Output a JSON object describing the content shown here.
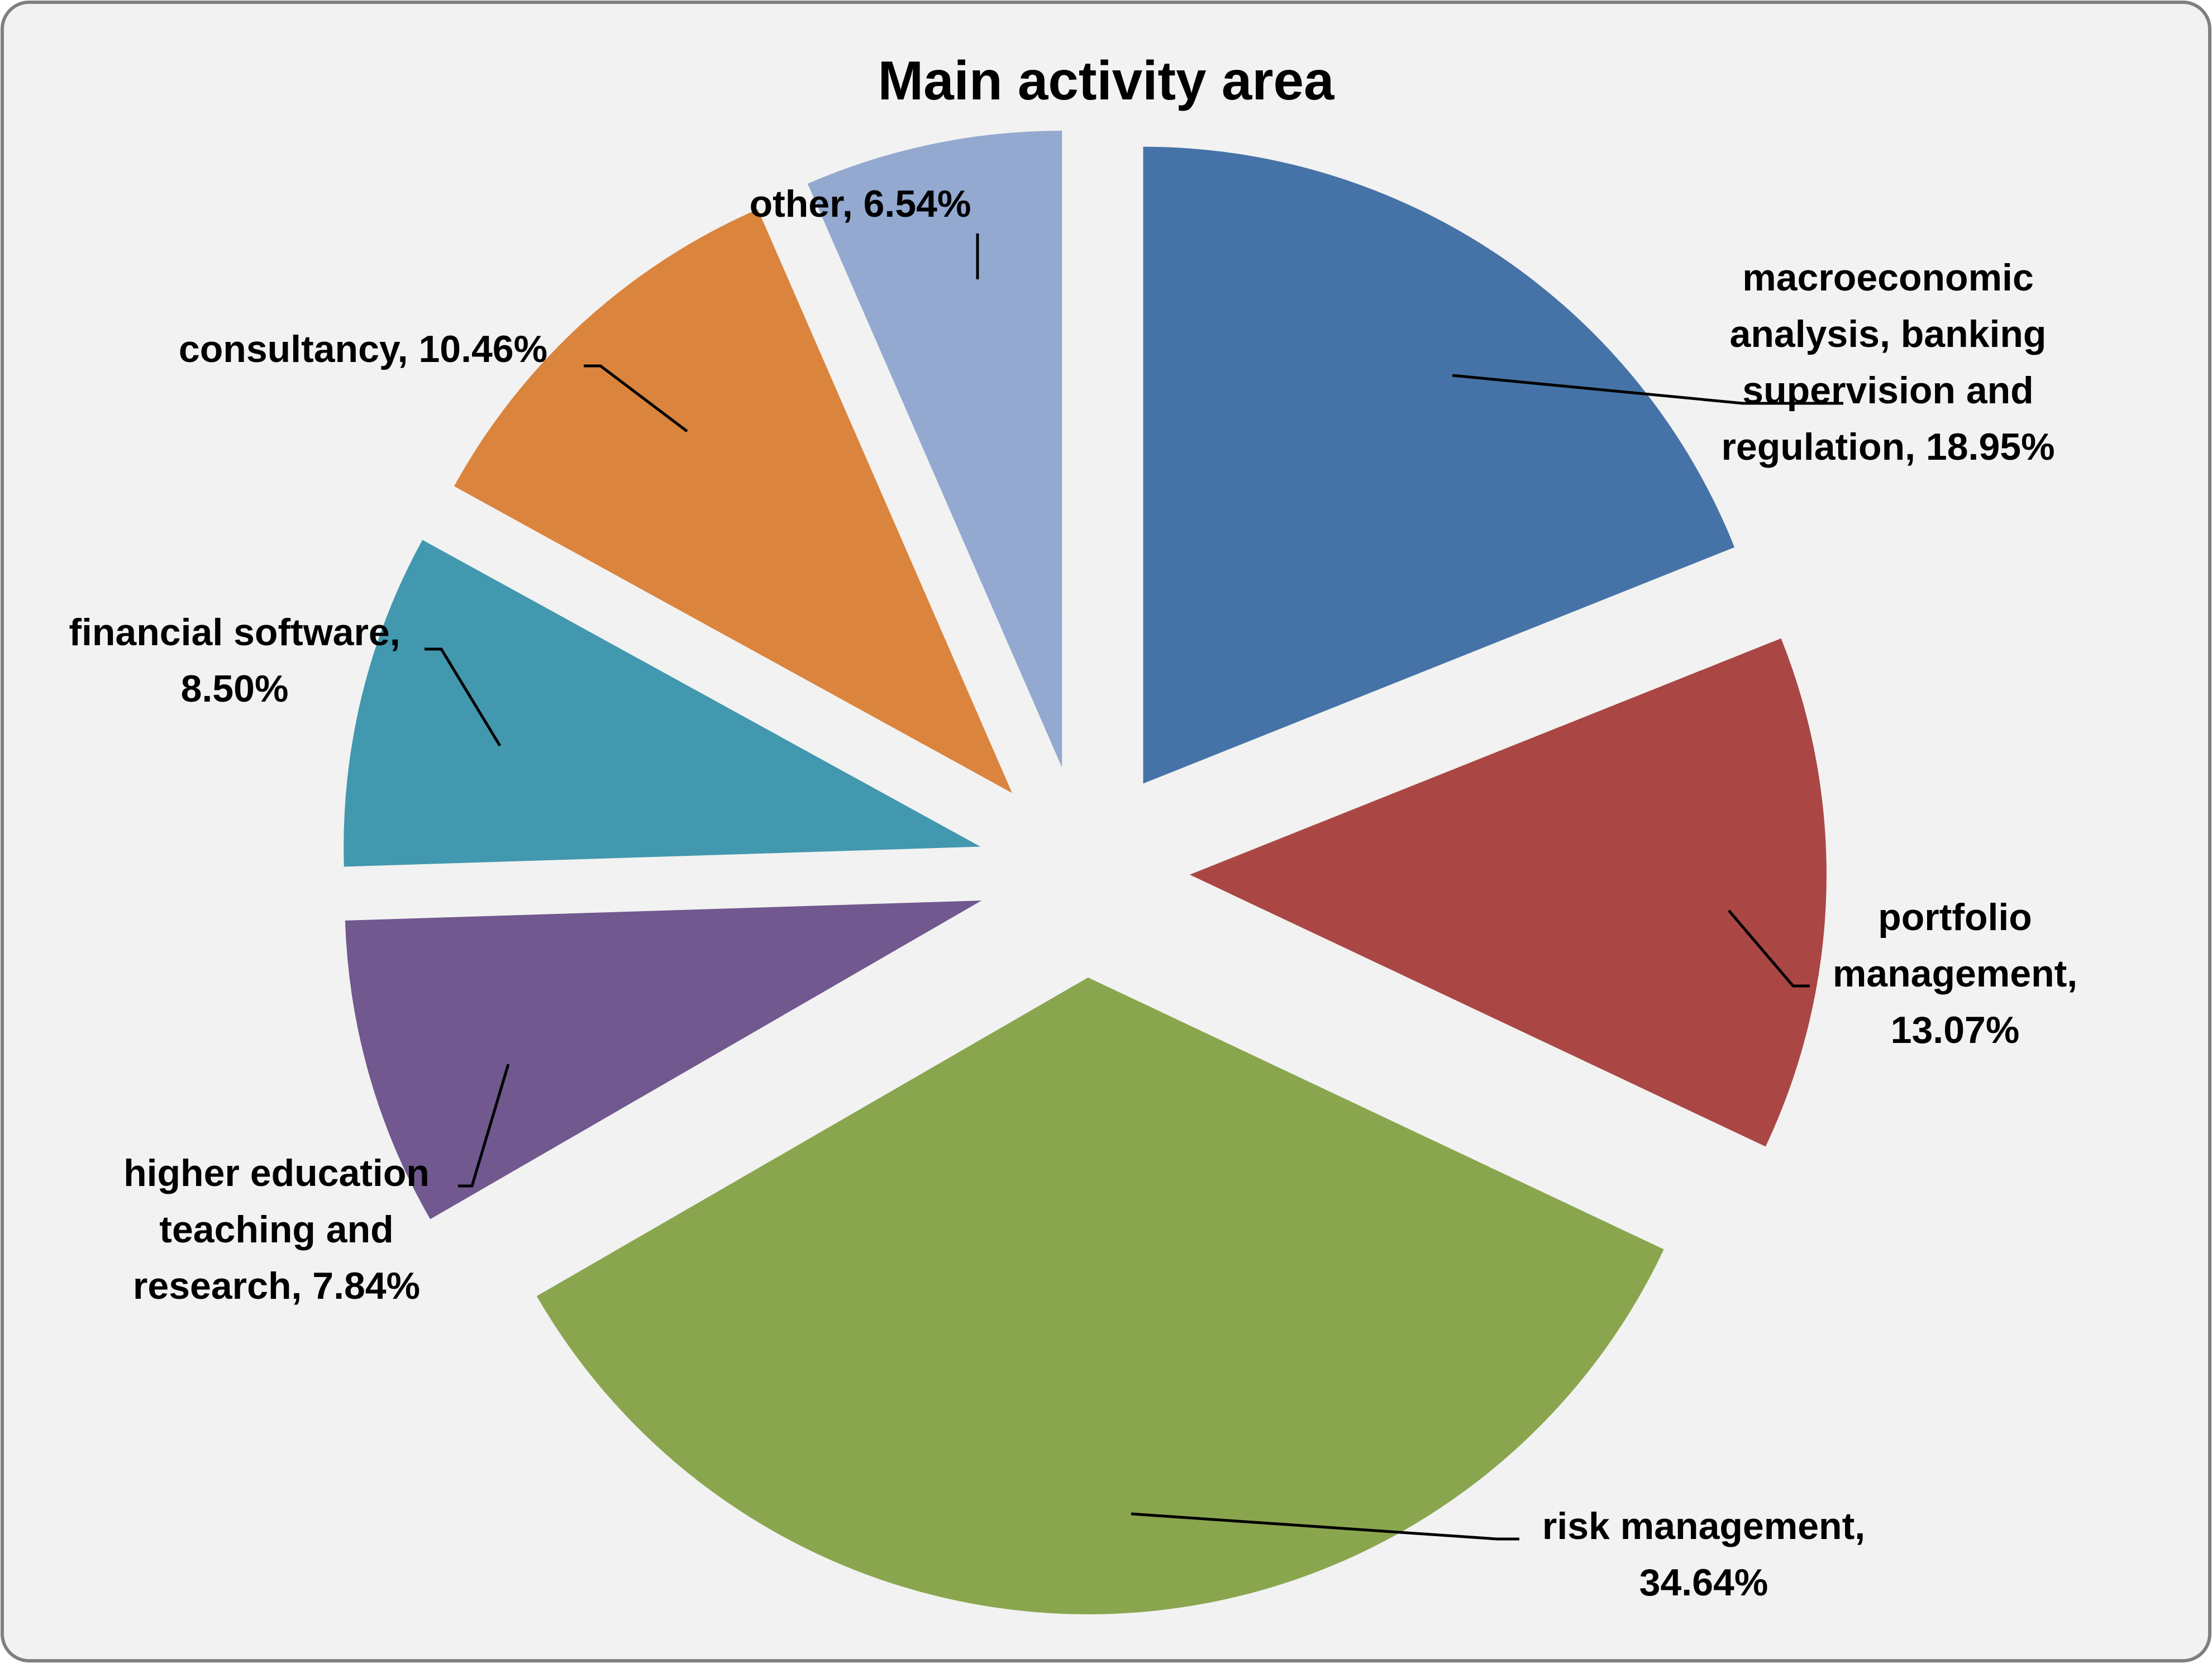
{
  "chart_data": {
    "type": "pie",
    "title": "Main activity area",
    "exploded": true,
    "slices": [
      {
        "name": "macroeconomic analysis, banking supervision and regulation",
        "value": 18.95,
        "label_lines": [
          "macroeconomic",
          "analysis, banking",
          "supervision and",
          "regulation, 18.95%"
        ],
        "color": "#4673A7"
      },
      {
        "name": "portfolio management",
        "value": 13.07,
        "label_lines": [
          "portfolio",
          "management,",
          "13.07%"
        ],
        "color": "#AA4745"
      },
      {
        "name": "risk management",
        "value": 34.64,
        "label_lines": [
          "risk management,",
          "34.64%"
        ],
        "color": "#89A64E"
      },
      {
        "name": "higher education teaching and research",
        "value": 7.84,
        "label_lines": [
          "higher education",
          "teaching and",
          "research, 7.84%"
        ],
        "color": "#71588F"
      },
      {
        "name": "financial software",
        "value": 8.5,
        "label_lines": [
          "financial software,",
          "8.50%"
        ],
        "color": "#4298AF"
      },
      {
        "name": "consultancy",
        "value": 10.46,
        "label_lines": [
          "consultancy, 10.46%"
        ],
        "color": "#DB843D"
      },
      {
        "name": "other",
        "value": 6.54,
        "label_lines": [
          "other, 6.54%"
        ],
        "color": "#93A9D0"
      }
    ]
  },
  "colors": {
    "background": "#F2F2F2",
    "border": "#7F7F7F",
    "text": "#000000"
  }
}
